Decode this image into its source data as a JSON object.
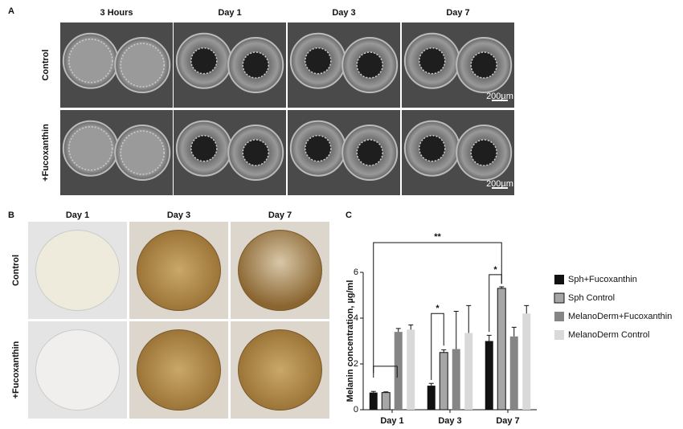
{
  "panels": {
    "a": {
      "label": "A",
      "columns": [
        "3 Hours",
        "Day 1",
        "Day 3",
        "Day 7"
      ],
      "rows": [
        "Control",
        "+Fucoxanthin"
      ],
      "scale_bar": "200µm"
    },
    "b": {
      "label": "B",
      "columns": [
        "Day 1",
        "Day 3",
        "Day 7"
      ],
      "rows": [
        "Control",
        "+Fucoxanthin"
      ]
    },
    "c": {
      "label": "C"
    }
  },
  "chart_data": {
    "type": "bar",
    "y_label": "Melanin concentration, µg/ml",
    "categories": [
      "Day 1",
      "Day 3",
      "Day 7"
    ],
    "series": [
      {
        "name": "Sph+Fucoxanthin",
        "color": "#111111",
        "values": [
          0.75,
          1.05,
          3.0
        ],
        "errors": [
          0.05,
          0.1,
          0.25
        ]
      },
      {
        "name": "Sph Control",
        "color": "#a6a6a6",
        "values": [
          0.75,
          2.5,
          5.3
        ],
        "errors": [
          0.03,
          0.12,
          0.07
        ]
      },
      {
        "name": "MelanoDerm+Fucoxanthin",
        "color": "#858585",
        "values": [
          3.4,
          2.65,
          3.2
        ],
        "errors": [
          0.15,
          1.65,
          0.4
        ]
      },
      {
        "name": "MelanoDerm Control",
        "color": "#d9d9d9",
        "values": [
          3.5,
          3.35,
          4.2
        ],
        "errors": [
          0.2,
          1.2,
          0.35
        ]
      }
    ],
    "ylim": [
      0,
      6
    ],
    "yticks": [
      0,
      2,
      4,
      6
    ],
    "annotations": [
      "**",
      "*",
      "*"
    ],
    "legend": "right"
  }
}
